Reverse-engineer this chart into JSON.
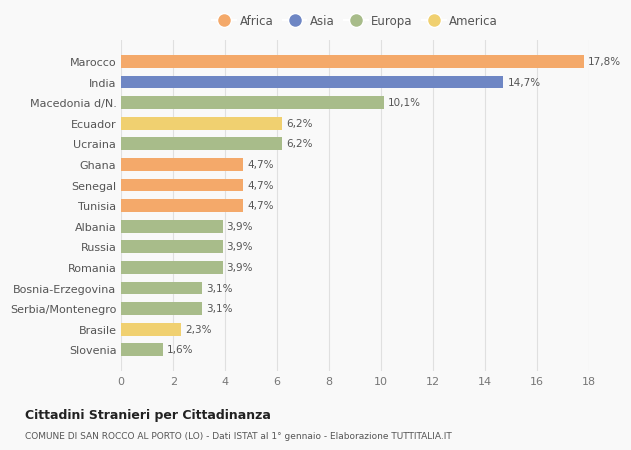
{
  "countries": [
    "Marocco",
    "India",
    "Macedonia d/N.",
    "Ecuador",
    "Ucraina",
    "Ghana",
    "Senegal",
    "Tunisia",
    "Albania",
    "Russia",
    "Romania",
    "Bosnia-Erzegovina",
    "Serbia/Montenegro",
    "Brasile",
    "Slovenia"
  ],
  "values": [
    17.8,
    14.7,
    10.1,
    6.2,
    6.2,
    4.7,
    4.7,
    4.7,
    3.9,
    3.9,
    3.9,
    3.1,
    3.1,
    2.3,
    1.6
  ],
  "labels": [
    "17,8%",
    "14,7%",
    "10,1%",
    "6,2%",
    "6,2%",
    "4,7%",
    "4,7%",
    "4,7%",
    "3,9%",
    "3,9%",
    "3,9%",
    "3,1%",
    "3,1%",
    "2,3%",
    "1,6%"
  ],
  "colors": [
    "#F4A96A",
    "#6E86C4",
    "#A8BC8A",
    "#F0D070",
    "#A8BC8A",
    "#F4A96A",
    "#F4A96A",
    "#F4A96A",
    "#A8BC8A",
    "#A8BC8A",
    "#A8BC8A",
    "#A8BC8A",
    "#A8BC8A",
    "#F0D070",
    "#A8BC8A"
  ],
  "legend_labels": [
    "Africa",
    "Asia",
    "Europa",
    "America"
  ],
  "legend_colors": [
    "#F4A96A",
    "#6E86C4",
    "#A8BC8A",
    "#F0D070"
  ],
  "title": "Cittadini Stranieri per Cittadinanza",
  "subtitle": "COMUNE DI SAN ROCCO AL PORTO (LO) - Dati ISTAT al 1° gennaio - Elaborazione TUTTITALIA.IT",
  "xlim": [
    0,
    18
  ],
  "xticks": [
    0,
    2,
    4,
    6,
    8,
    10,
    12,
    14,
    16,
    18
  ],
  "background_color": "#f9f9f9",
  "grid_color": "#e0e0e0"
}
